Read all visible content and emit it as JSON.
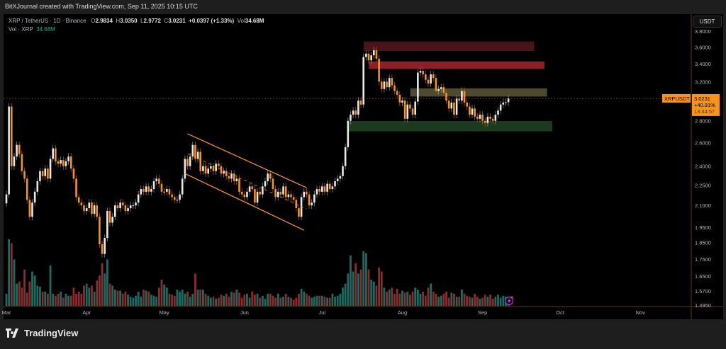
{
  "header": {
    "credit": "BitXJournal created with TradingView.com, Sep 11, 2025 10:15 UTC"
  },
  "legend": {
    "symbol": "XRP / TetherUS · 1D · Binance",
    "o_label": "O",
    "o": "2.9834",
    "h_label": "H",
    "h": "3.0350",
    "l_label": "L",
    "l": "2.9772",
    "c_label": "C",
    "c": "3.0231",
    "change": "+0.0397 (+1.33%)",
    "vol_label": "Vol",
    "vol": "34.68M",
    "vol_row_label": "Vol · XRP",
    "vol_row_value": "34.68M"
  },
  "axis": {
    "currency": "USDT"
  },
  "price_tag": {
    "symbol": "XRPUSDT",
    "price": "3.0231",
    "change_pct": "+40.91%",
    "countdown": "13:44:57"
  },
  "footer": {
    "brand": "TradingView"
  },
  "colors": {
    "up": "#e8e8e8",
    "down": "#f7931a",
    "vol_up": "#1c6b63",
    "vol_down": "#8a2d2d",
    "channel": "#f7931a",
    "zone_dark_red": "#4a1518",
    "zone_red": "#8b1f2a",
    "zone_olive": "#4d4a30",
    "zone_green": "#1c3a1e"
  },
  "chart_data": {
    "type": "candlestick",
    "scale": "log",
    "start_date": "2025-03-01",
    "end_date": "2025-09-11",
    "y_ticks": [
      "3.8000",
      "3.6000",
      "3.4000",
      "3.2000",
      "2.8000",
      "2.6000",
      "2.4000",
      "2.2500",
      "2.1000",
      "1.9500",
      "1.8500",
      "1.7500",
      "1.6500",
      "1.5700",
      "1.4950"
    ],
    "x_ticks": [
      "Mar",
      "Apr",
      "May",
      "Jun",
      "Jul",
      "Aug",
      "Sep",
      "Oct",
      "Nov"
    ],
    "ylim": [
      1.495,
      3.8
    ],
    "grid": false,
    "closes": [
      2.18,
      2.94,
      2.4,
      2.48,
      2.58,
      2.5,
      2.36,
      2.3,
      2.14,
      2.02,
      2.12,
      2.2,
      2.28,
      2.36,
      2.32,
      2.38,
      2.3,
      2.46,
      2.55,
      2.44,
      2.42,
      2.45,
      2.4,
      2.44,
      2.48,
      2.38,
      2.3,
      2.16,
      2.12,
      2.1,
      2.06,
      2.08,
      2.12,
      2.04,
      2.1,
      2.02,
      1.84,
      1.78,
      1.88,
      2.06,
      1.98,
      2.02,
      2.1,
      2.08,
      2.12,
      2.1,
      2.06,
      2.08,
      2.1,
      2.1,
      2.12,
      2.18,
      2.22,
      2.2,
      2.24,
      2.2,
      2.22,
      2.28,
      2.3,
      2.26,
      2.2,
      2.2,
      2.22,
      2.18,
      2.16,
      2.14,
      2.14,
      2.18,
      2.3,
      2.46,
      2.4,
      2.48,
      2.58,
      2.46,
      2.52,
      2.36,
      2.4,
      2.34,
      2.38,
      2.4,
      2.36,
      2.42,
      2.4,
      2.34,
      2.36,
      2.32,
      2.3,
      2.34,
      2.28,
      2.3,
      2.2,
      2.18,
      2.16,
      2.2,
      2.24,
      2.22,
      2.12,
      2.2,
      2.18,
      2.24,
      2.28,
      2.34,
      2.3,
      2.22,
      2.16,
      2.2,
      2.18,
      2.24,
      2.16,
      2.18,
      2.16,
      2.14,
      2.08,
      2.02,
      2.16,
      2.2,
      2.18,
      2.1,
      2.12,
      2.18,
      2.22,
      2.2,
      2.24,
      2.2,
      2.26,
      2.22,
      2.24,
      2.28,
      2.3,
      2.32,
      2.4,
      2.56,
      2.8,
      2.86,
      2.9,
      2.86,
      3.0,
      2.96,
      3.48,
      3.52,
      3.44,
      3.5,
      3.56,
      3.46,
      3.2,
      3.12,
      3.2,
      3.14,
      3.24,
      3.16,
      3.1,
      3.06,
      2.98,
      3.0,
      2.82,
      2.96,
      2.92,
      2.86,
      2.99,
      3.3,
      3.32,
      3.28,
      3.22,
      3.18,
      3.28,
      3.24,
      3.1,
      3.12,
      3.14,
      3.08,
      3.0,
      2.92,
      2.98,
      2.86,
      3.02,
      3.0,
      3.1,
      2.98,
      2.94,
      2.86,
      2.92,
      2.84,
      2.82,
      2.86,
      2.8,
      2.78,
      2.84,
      2.82,
      2.8,
      2.86,
      2.9,
      2.96,
      2.98,
      2.9834,
      3.0231
    ],
    "volume_millions": [
      60,
      330,
      310,
      230,
      110,
      120,
      90,
      180,
      65,
      120,
      170,
      150,
      100,
      95,
      70,
      70,
      60,
      200,
      60,
      50,
      60,
      70,
      40,
      60,
      50,
      50,
      90,
      60,
      70,
      60,
      100,
      110,
      90,
      100,
      70,
      125,
      150,
      210,
      160,
      230,
      110,
      100,
      80,
      75,
      75,
      60,
      70,
      55,
      45,
      40,
      50,
      70,
      45,
      80,
      75,
      70,
      55,
      50,
      45,
      90,
      130,
      105,
      90,
      60,
      55,
      50,
      80,
      70,
      80,
      60,
      70,
      45,
      60,
      160,
      80,
      80,
      80,
      60,
      50,
      40,
      45,
      35,
      40,
      55,
      50,
      60,
      45,
      70,
      65,
      80,
      65,
      40,
      55,
      60,
      40,
      70,
      55,
      60,
      40,
      50,
      35,
      60,
      60,
      50,
      40,
      60,
      40,
      45,
      60,
      45,
      40,
      30,
      40,
      60,
      85,
      70,
      60,
      50,
      40,
      45,
      50,
      50,
      50,
      45,
      40,
      40,
      60,
      45,
      50,
      60,
      90,
      110,
      160,
      250,
      170,
      210,
      160,
      180,
      270,
      260,
      180,
      130,
      120,
      100,
      190,
      170,
      90,
      70,
      80,
      90,
      60,
      85,
      60,
      75,
      65,
      70,
      55,
      70,
      90,
      80,
      60,
      70,
      50,
      90,
      110,
      70,
      60,
      45,
      50,
      60,
      70,
      40,
      65,
      60,
      45,
      45,
      80,
      60,
      50,
      45,
      40,
      60,
      45,
      35,
      40,
      55,
      45,
      55,
      35,
      45,
      55,
      40,
      50,
      45,
      34.68
    ],
    "zones": [
      {
        "kind": "resistance-dark-red",
        "from": "2025-07-17",
        "to": "2025-09-21",
        "low": 3.55,
        "high": 3.67
      },
      {
        "kind": "resistance-red",
        "from": "2025-07-19",
        "to": "2025-09-25",
        "low": 3.34,
        "high": 3.43
      },
      {
        "kind": "neutral-olive",
        "from": "2025-08-04",
        "to": "2025-09-26",
        "low": 3.04,
        "high": 3.13
      },
      {
        "kind": "support-green",
        "from": "2025-07-11",
        "to": "2025-09-28",
        "low": 2.7,
        "high": 2.8
      }
    ],
    "channel": {
      "upper": [
        [
          "2025-05-10",
          2.68
        ],
        [
          "2025-06-25",
          2.23
        ]
      ],
      "lower": [
        [
          "2025-05-09",
          2.34
        ],
        [
          "2025-06-24",
          1.93
        ]
      ]
    },
    "last_price": 3.0231
  }
}
